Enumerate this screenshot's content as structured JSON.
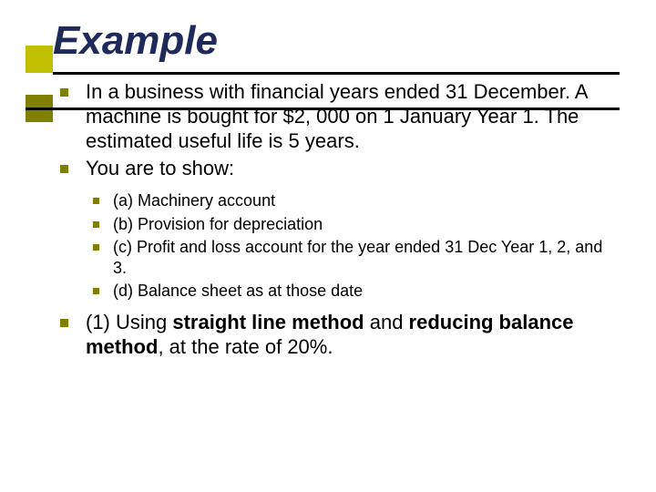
{
  "title": "Example",
  "title_color": "#1f2a5a",
  "title_fontsize": 44,
  "deco_top_color": "#c0c000",
  "deco_bottom_color": "#808000",
  "line_color": "#000000",
  "bullet_color": "#808000",
  "body_fontsize_l1": 22,
  "body_fontsize_l2": 18,
  "l1_item1": "In a business with financial years ended 31 December.  A machine is bought for $2, 000 on 1 January Year 1.  The estimated useful life is 5 years.",
  "l1_item2": "You are to show:",
  "l2_item1": "(a) Machinery account",
  "l2_item2": "(b) Provision for depreciation",
  "l2_item3": "(c) Profit and loss account for the year ended 31 Dec Year 1, 2, and 3.",
  "l2_item4": "(d) Balance sheet as at those date",
  "l1_item3_pre": "(1) Using ",
  "l1_item3_b1": "straight line method",
  "l1_item3_mid": " and ",
  "l1_item3_b2": "reducing balance method",
  "l1_item3_post": ", at the rate of 20%."
}
